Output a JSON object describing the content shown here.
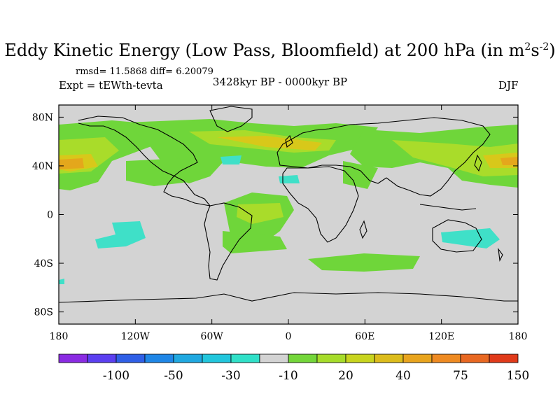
{
  "title": {
    "main": "Eddy Kinetic Energy (Low Pass, Bloomfield) at 200 hPa (in m",
    "sup1": "2",
    "mid": "s",
    "sup2": "-2",
    "end": ")"
  },
  "stats": "rmsd= 11.5868 diff= 6.20079",
  "expt": "Expt = tEWth-tevta",
  "period": "3428kyr BP - 0000kyr BP",
  "season": "DJF",
  "map": {
    "projection": "cylindrical-equidistant",
    "lon_range": [
      -180,
      180
    ],
    "lat_range": [
      -90,
      90
    ],
    "x_ticks": [
      {
        "lon": -180,
        "label": "180"
      },
      {
        "lon": -120,
        "label": "120W"
      },
      {
        "lon": -60,
        "label": "60W"
      },
      {
        "lon": 0,
        "label": "0"
      },
      {
        "lon": 60,
        "label": "60E"
      },
      {
        "lon": 120,
        "label": "120E"
      },
      {
        "lon": 180,
        "label": "180"
      }
    ],
    "y_ticks": [
      {
        "lat": 80,
        "label": "80N"
      },
      {
        "lat": 40,
        "label": "40N"
      },
      {
        "lat": 0,
        "label": "0"
      },
      {
        "lat": -40,
        "label": "40S"
      },
      {
        "lat": -80,
        "label": "80S"
      }
    ],
    "colors": {
      "background": "#d3d3d3",
      "green": "#6fd63a",
      "lightgreen": "#a9dc2a",
      "yellow": "#d8c81a",
      "orange": "#e4a71c",
      "cyan": "#3fe0c8",
      "coast": "#000000"
    }
  },
  "colorbar": {
    "colors": [
      "#8a2be2",
      "#5b3ff0",
      "#2f5fe6",
      "#1f86e6",
      "#20a8e0",
      "#22c6dc",
      "#30e0c8",
      "#d3d3d3",
      "#74d63a",
      "#a6dc2a",
      "#c8d41f",
      "#dcbc1c",
      "#e8a41e",
      "#ee8a22",
      "#e86822",
      "#e03a1a"
    ],
    "labels": [
      {
        "index": 2,
        "text": "-100"
      },
      {
        "index": 4,
        "text": "-50"
      },
      {
        "index": 6,
        "text": "-30"
      },
      {
        "index": 8,
        "text": "-10"
      },
      {
        "index": 10,
        "text": "20"
      },
      {
        "index": 12,
        "text": "40"
      },
      {
        "index": 14,
        "text": "75"
      },
      {
        "index": 16,
        "text": "150"
      }
    ]
  }
}
